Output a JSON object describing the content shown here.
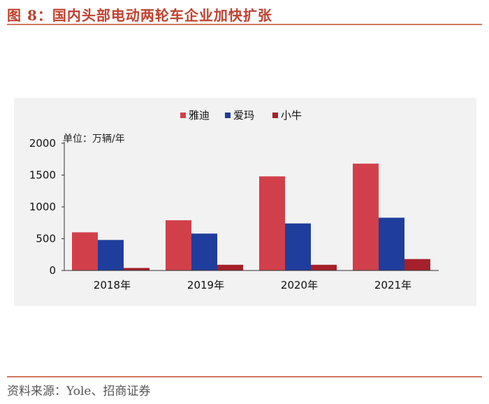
{
  "figure": {
    "title": "图 8：国内头部电动两轮车企业加快扩张",
    "source": "资料来源：Yole、招商证券"
  },
  "colors": {
    "accent": "#c0402e",
    "rule": "#d2775e",
    "panel_bg": "#f2f2f2"
  },
  "chart_data": {
    "type": "bar",
    "categories": [
      "2018年",
      "2019年",
      "2020年",
      "2021年"
    ],
    "series": [
      {
        "name": "雅迪",
        "color": "#d1404a",
        "values": [
          600,
          790,
          1480,
          1680
        ]
      },
      {
        "name": "爱玛",
        "color": "#1f3d9c",
        "values": [
          480,
          580,
          740,
          830
        ]
      },
      {
        "name": "小牛",
        "color": "#a5202a",
        "values": [
          40,
          90,
          90,
          180
        ]
      }
    ],
    "y_ticks": [
      0,
      500,
      1000,
      1500,
      2000
    ],
    "ylim": [
      0,
      2000
    ],
    "unit_label": "单位：万辆/年",
    "legend_position": "top-center",
    "grid": false
  }
}
